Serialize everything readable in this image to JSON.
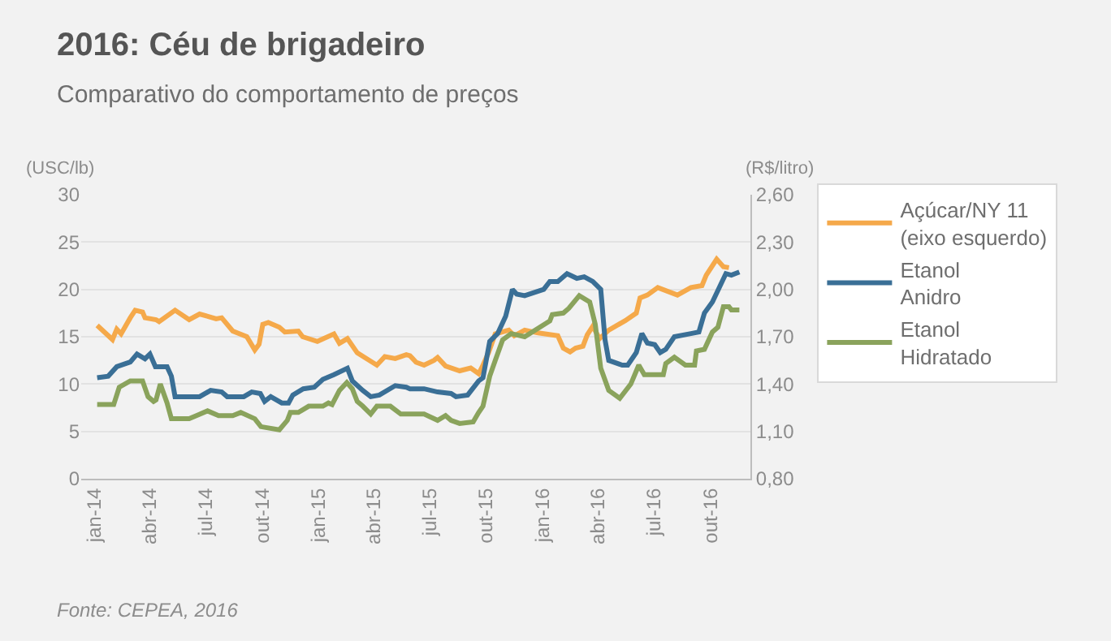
{
  "chart_data": {
    "type": "line",
    "title": "2016: Céu de brigadeiro",
    "subtitle": "Comparativo do comportamento de preços",
    "ylabel": "(USC/lb)",
    "y2label": "(R$/litro)",
    "annotations": [
      "Fonte: CEPEA, 2016"
    ],
    "xlim": [
      "2013-12-10",
      "2016-12-05"
    ],
    "xticks": [
      {
        "value": "2014-01-01",
        "label": "jan-14"
      },
      {
        "value": "2014-04-01",
        "label": "abr-14"
      },
      {
        "value": "2014-07-01",
        "label": "jul-14"
      },
      {
        "value": "2014-10-01",
        "label": "out-14"
      },
      {
        "value": "2015-01-01",
        "label": "jan-15"
      },
      {
        "value": "2015-04-01",
        "label": "abr-15"
      },
      {
        "value": "2015-07-01",
        "label": "jul-15"
      },
      {
        "value": "2015-10-01",
        "label": "out-15"
      },
      {
        "value": "2016-01-01",
        "label": "jan-16"
      },
      {
        "value": "2016-04-01",
        "label": "abr-16"
      },
      {
        "value": "2016-07-01",
        "label": "jul-16"
      },
      {
        "value": "2016-10-01",
        "label": "out-16"
      }
    ],
    "ylim": [
      0,
      30
    ],
    "yticks": [
      0,
      5,
      10,
      15,
      20,
      25,
      30
    ],
    "y2lim": [
      0.8,
      2.6
    ],
    "y2ticks": [
      {
        "value": 0.8,
        "label": "0,80"
      },
      {
        "value": 1.1,
        "label": "1,10"
      },
      {
        "value": 1.4,
        "label": "1,40"
      },
      {
        "value": 1.7,
        "label": "1,70"
      },
      {
        "value": 2.0,
        "label": "2,00"
      },
      {
        "value": 2.3,
        "label": "2,30"
      },
      {
        "value": 2.6,
        "label": "2,60"
      }
    ],
    "grid": "y",
    "legend": "right",
    "line_style": "solid",
    "series": [
      {
        "name": "Açúcar/NY 11\n(eixo esquerdo)",
        "color": "#f5a94a",
        "x": [
          "2014-01-05",
          "2014-01-30",
          "2014-02-06",
          "2014-02-13",
          "2014-02-28",
          "2014-03-08",
          "2014-03-20",
          "2014-03-24",
          "2014-04-11",
          "2014-04-16",
          "2014-05-12",
          "2014-06-04",
          "2014-06-21",
          "2014-07-18",
          "2014-07-27",
          "2014-08-14",
          "2014-09-06",
          "2014-09-19",
          "2014-09-26",
          "2014-10-02",
          "2014-10-11",
          "2014-10-29",
          "2014-11-07",
          "2014-11-29",
          "2014-12-06",
          "2014-12-30",
          "2015-01-26",
          "2015-02-04",
          "2015-02-17",
          "2015-03-05",
          "2015-04-06",
          "2015-04-19",
          "2015-05-06",
          "2015-05-24",
          "2015-05-30",
          "2015-06-09",
          "2015-06-22",
          "2015-07-08",
          "2015-07-14",
          "2015-07-27",
          "2015-08-19",
          "2015-09-06",
          "2015-09-19",
          "2015-09-26",
          "2015-10-05",
          "2015-10-16",
          "2015-11-07",
          "2015-11-16",
          "2015-12-03",
          "2015-12-25",
          "2016-01-26",
          "2016-02-04",
          "2016-02-15",
          "2016-02-24",
          "2016-03-07",
          "2016-03-14",
          "2016-03-23",
          "2016-04-03",
          "2016-04-18",
          "2016-05-15",
          "2016-06-02",
          "2016-06-08",
          "2016-06-20",
          "2016-07-07",
          "2016-08-08",
          "2016-08-30",
          "2016-09-17",
          "2016-09-24",
          "2016-10-11",
          "2016-10-22",
          "2016-10-31"
        ],
        "values": [
          16.2,
          14.7,
          15.8,
          15.3,
          17.0,
          17.8,
          17.6,
          17.0,
          16.8,
          16.6,
          17.8,
          16.8,
          17.4,
          16.9,
          17.0,
          15.6,
          15.0,
          13.6,
          14.2,
          16.3,
          16.5,
          16.0,
          15.5,
          15.6,
          15.0,
          14.5,
          15.3,
          14.3,
          14.8,
          13.3,
          12.0,
          12.9,
          12.7,
          13.1,
          13.0,
          12.3,
          12.0,
          12.5,
          12.8,
          11.9,
          11.4,
          11.7,
          11.1,
          12.0,
          13.3,
          15.3,
          15.7,
          15.1,
          15.7,
          15.4,
          15.1,
          13.8,
          13.4,
          13.8,
          14.0,
          15.2,
          16.1,
          14.8,
          15.7,
          16.7,
          17.5,
          19.1,
          19.4,
          20.2,
          19.4,
          20.2,
          20.4,
          21.5,
          23.2,
          22.4,
          22.3
        ]
      },
      {
        "name": "Etanol\nAnidro",
        "color": "#3a6f96",
        "axis": "y2",
        "x": [
          "2014-01-05",
          "2014-01-23",
          "2014-02-06",
          "2014-02-28",
          "2014-03-11",
          "2014-03-24",
          "2014-04-01",
          "2014-04-10",
          "2014-04-29",
          "2014-05-06",
          "2014-05-12",
          "2014-06-21",
          "2014-07-09",
          "2014-07-27",
          "2014-08-05",
          "2014-09-01",
          "2014-09-14",
          "2014-09-28",
          "2014-10-05",
          "2014-10-15",
          "2014-11-02",
          "2014-11-13",
          "2014-11-20",
          "2014-12-07",
          "2014-12-25",
          "2015-01-08",
          "2015-01-26",
          "2015-02-17",
          "2015-02-25",
          "2015-03-14",
          "2015-03-27",
          "2015-04-10",
          "2015-05-06",
          "2015-05-24",
          "2015-05-30",
          "2015-06-22",
          "2015-07-14",
          "2015-08-05",
          "2015-08-13",
          "2015-09-01",
          "2015-09-19",
          "2015-09-26",
          "2015-10-07",
          "2015-10-20",
          "2015-11-02",
          "2015-11-13",
          "2015-11-20",
          "2015-12-03",
          "2016-01-03",
          "2016-01-13",
          "2016-01-26",
          "2016-02-10",
          "2016-02-26",
          "2016-03-09",
          "2016-03-23",
          "2016-04-05",
          "2016-04-12",
          "2016-04-18",
          "2016-05-10",
          "2016-05-19",
          "2016-06-02",
          "2016-06-11",
          "2016-06-20",
          "2016-07-02",
          "2016-07-11",
          "2016-07-20",
          "2016-08-03",
          "2016-08-30",
          "2016-09-12",
          "2016-09-21",
          "2016-10-04",
          "2016-10-26",
          "2016-11-04",
          "2016-11-17"
        ],
        "values": [
          1.44,
          1.45,
          1.51,
          1.54,
          1.59,
          1.56,
          1.59,
          1.51,
          1.51,
          1.45,
          1.32,
          1.32,
          1.36,
          1.35,
          1.32,
          1.32,
          1.35,
          1.34,
          1.29,
          1.32,
          1.28,
          1.28,
          1.33,
          1.37,
          1.38,
          1.43,
          1.46,
          1.5,
          1.42,
          1.36,
          1.32,
          1.33,
          1.39,
          1.38,
          1.37,
          1.37,
          1.35,
          1.34,
          1.32,
          1.33,
          1.42,
          1.44,
          1.67,
          1.72,
          1.83,
          2.0,
          1.97,
          1.96,
          2.0,
          2.05,
          2.05,
          2.1,
          2.07,
          2.08,
          2.05,
          2.0,
          1.68,
          1.55,
          1.52,
          1.52,
          1.6,
          1.72,
          1.66,
          1.65,
          1.6,
          1.62,
          1.7,
          1.72,
          1.73,
          1.85,
          1.92,
          2.1,
          2.09,
          2.11
        ]
      },
      {
        "name": "Etanol\nHidratado",
        "color": "#8aa35c",
        "axis": "y2",
        "x": [
          "2014-01-05",
          "2014-02-01",
          "2014-02-10",
          "2014-02-28",
          "2014-03-20",
          "2014-03-29",
          "2014-04-07",
          "2014-04-11",
          "2014-04-18",
          "2014-04-29",
          "2014-05-06",
          "2014-06-04",
          "2014-07-04",
          "2014-07-22",
          "2014-08-14",
          "2014-08-27",
          "2014-09-19",
          "2014-09-29",
          "2014-10-29",
          "2014-11-11",
          "2014-11-16",
          "2014-11-29",
          "2014-12-16",
          "2015-01-08",
          "2015-01-17",
          "2015-01-23",
          "2015-02-04",
          "2015-02-16",
          "2015-02-25",
          "2015-03-05",
          "2015-03-14",
          "2015-03-27",
          "2015-04-06",
          "2015-04-28",
          "2015-05-15",
          "2015-05-24",
          "2015-05-30",
          "2015-06-22",
          "2015-07-14",
          "2015-07-27",
          "2015-08-05",
          "2015-08-19",
          "2015-09-10",
          "2015-09-19",
          "2015-09-26",
          "2015-10-07",
          "2015-10-16",
          "2015-10-28",
          "2015-11-11",
          "2015-12-03",
          "2016-01-13",
          "2016-01-17",
          "2016-02-04",
          "2016-02-13",
          "2016-03-01",
          "2016-03-18",
          "2016-03-27",
          "2016-04-05",
          "2016-04-18",
          "2016-05-06",
          "2016-05-24",
          "2016-06-06",
          "2016-06-15",
          "2016-07-16",
          "2016-07-20",
          "2016-08-03",
          "2016-08-21",
          "2016-09-05",
          "2016-09-08",
          "2016-09-21",
          "2016-10-04",
          "2016-10-13",
          "2016-10-22",
          "2016-10-31",
          "2016-11-04",
          "2016-11-17"
        ],
        "values": [
          1.27,
          1.27,
          1.38,
          1.42,
          1.42,
          1.32,
          1.29,
          1.3,
          1.4,
          1.28,
          1.18,
          1.18,
          1.23,
          1.2,
          1.2,
          1.22,
          1.18,
          1.13,
          1.11,
          1.17,
          1.22,
          1.22,
          1.26,
          1.26,
          1.28,
          1.27,
          1.36,
          1.41,
          1.37,
          1.29,
          1.26,
          1.21,
          1.26,
          1.26,
          1.21,
          1.21,
          1.21,
          1.21,
          1.17,
          1.2,
          1.17,
          1.15,
          1.16,
          1.22,
          1.26,
          1.45,
          1.55,
          1.68,
          1.72,
          1.7,
          1.8,
          1.84,
          1.85,
          1.88,
          1.96,
          1.92,
          1.78,
          1.5,
          1.36,
          1.31,
          1.4,
          1.52,
          1.46,
          1.46,
          1.53,
          1.57,
          1.52,
          1.52,
          1.61,
          1.62,
          1.73,
          1.76,
          1.89,
          1.89,
          1.87,
          1.87
        ]
      }
    ]
  }
}
